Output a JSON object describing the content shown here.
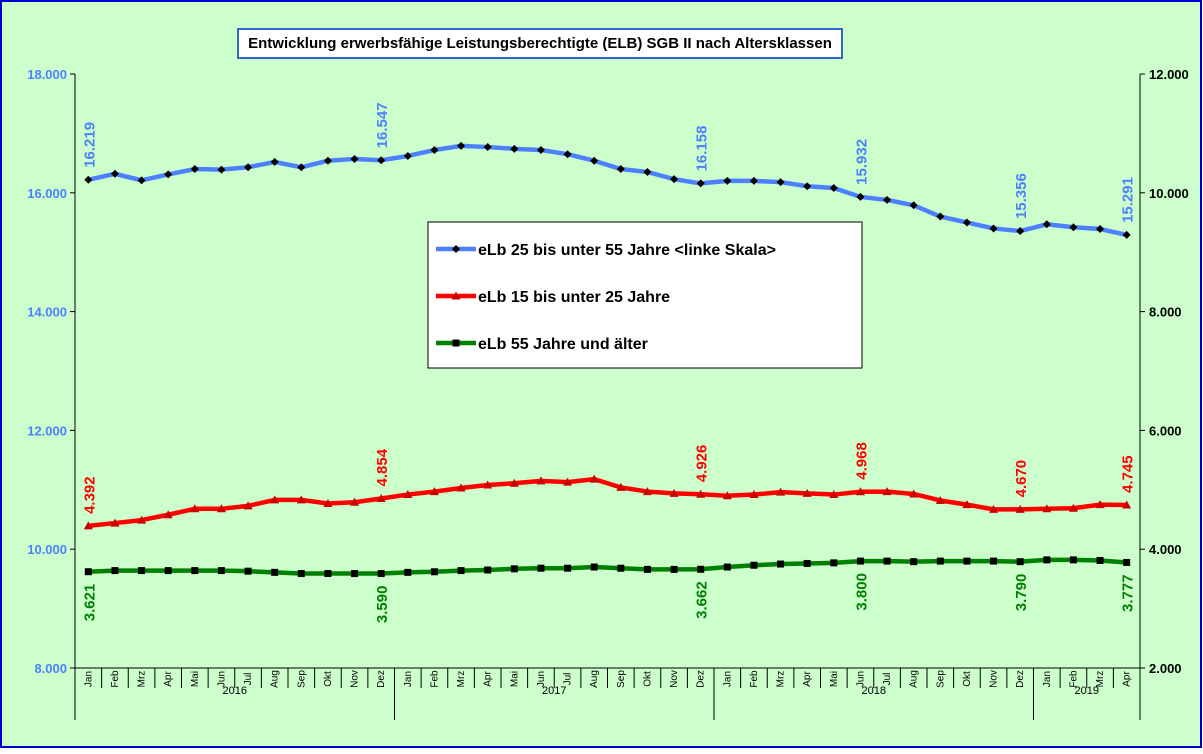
{
  "chart_data": {
    "type": "line",
    "title": "Entwicklung erwerbsfähige Leistungsberechtigte (ELB) SGB II nach Altersklassen",
    "categories": [
      "Jan",
      "Feb",
      "Mrz",
      "Apr",
      "Mai",
      "Jun",
      "Jul",
      "Aug",
      "Sep",
      "Okt",
      "Nov",
      "Dez",
      "Jan",
      "Feb",
      "Mrz",
      "Apr",
      "Mai",
      "Jun",
      "Jul",
      "Aug",
      "Sep",
      "Okt",
      "Nov",
      "Dez",
      "Jan",
      "Feb",
      "Mrz",
      "Apr",
      "Mai",
      "Jun",
      "Jul",
      "Aug",
      "Sep",
      "Okt",
      "Nov",
      "Dez",
      "Jan",
      "Feb",
      "Mrz",
      "Apr"
    ],
    "groups": [
      "2016",
      "2017",
      "2018",
      "2019"
    ],
    "ylim": [
      8000,
      18000
    ],
    "yticks": [
      {
        "value": 8000,
        "label": "8.000"
      },
      {
        "value": 10000,
        "label": "10.000"
      },
      {
        "value": 12000,
        "label": "12.000"
      },
      {
        "value": 14000,
        "label": "14.000"
      },
      {
        "value": 16000,
        "label": "16.000"
      },
      {
        "value": 18000,
        "label": "18.000"
      }
    ],
    "y2lim": [
      2000,
      12000
    ],
    "y2ticks": [
      {
        "value": 2000,
        "label": "2.000"
      },
      {
        "value": 4000,
        "label": "4.000"
      },
      {
        "value": 6000,
        "label": "6.000"
      },
      {
        "value": 8000,
        "label": "8.000"
      },
      {
        "value": 10000,
        "label": "10.000"
      },
      {
        "value": 12000,
        "label": "12.000"
      }
    ],
    "legend": "center",
    "series": [
      {
        "name": "eLb 25 bis unter 55 Jahre <linke Skala>",
        "color": "#4d80ff",
        "marker": "diamond",
        "marker_color": "#000000",
        "label_position": "above",
        "values": [
          16219,
          16320,
          16210,
          16310,
          16400,
          16390,
          16430,
          16520,
          16430,
          16540,
          16570,
          16547,
          16620,
          16720,
          16790,
          16770,
          16740,
          16720,
          16650,
          16540,
          16400,
          16350,
          16230,
          16158,
          16200,
          16200,
          16180,
          16110,
          16080,
          15932,
          15880,
          15790,
          15600,
          15500,
          15400,
          15356,
          15470,
          15420,
          15390,
          15291
        ],
        "value_labels": [
          "16.219",
          null,
          null,
          null,
          null,
          null,
          null,
          null,
          null,
          null,
          null,
          "16.547",
          null,
          null,
          null,
          null,
          null,
          null,
          null,
          null,
          null,
          null,
          null,
          "16.158",
          null,
          null,
          null,
          null,
          null,
          "15.932",
          null,
          null,
          null,
          null,
          null,
          "15.356",
          null,
          null,
          null,
          "15.291"
        ]
      },
      {
        "name": "eLb 15 bis unter 25 Jahre",
        "color": "#ff0000",
        "marker": "triangle",
        "marker_color": "#cc0000",
        "axis": "y2",
        "label_position": "above",
        "values": [
          4392,
          4440,
          4490,
          4580,
          4680,
          4680,
          4730,
          4830,
          4830,
          4770,
          4790,
          4854,
          4920,
          4970,
          5030,
          5080,
          5110,
          5150,
          5130,
          5180,
          5040,
          4970,
          4940,
          4926,
          4900,
          4920,
          4960,
          4940,
          4920,
          4968,
          4970,
          4930,
          4820,
          4750,
          4670,
          4670,
          4680,
          4690,
          4750,
          4745
        ],
        "value_labels": [
          "4.392",
          null,
          null,
          null,
          null,
          null,
          null,
          null,
          null,
          null,
          null,
          "4.854",
          null,
          null,
          null,
          null,
          null,
          null,
          null,
          null,
          null,
          null,
          null,
          "4.926",
          null,
          null,
          null,
          null,
          null,
          "4.968",
          null,
          null,
          null,
          null,
          null,
          "4.670",
          null,
          null,
          null,
          "4.745"
        ]
      },
      {
        "name": "eLb 55 Jahre und älter",
        "color": "#008000",
        "marker": "square",
        "marker_color": "#000000",
        "axis": "y2",
        "label_position": "below",
        "values": [
          3621,
          3640,
          3640,
          3640,
          3640,
          3640,
          3630,
          3610,
          3590,
          3590,
          3590,
          3590,
          3610,
          3620,
          3640,
          3650,
          3670,
          3680,
          3680,
          3700,
          3680,
          3660,
          3660,
          3662,
          3700,
          3730,
          3750,
          3760,
          3770,
          3800,
          3800,
          3790,
          3800,
          3800,
          3800,
          3790,
          3820,
          3820,
          3810,
          3777
        ],
        "value_labels": [
          "3.621",
          null,
          null,
          null,
          null,
          null,
          null,
          null,
          null,
          null,
          null,
          "3.590",
          null,
          null,
          null,
          null,
          null,
          null,
          null,
          null,
          null,
          null,
          null,
          "3.662",
          null,
          null,
          null,
          null,
          null,
          "3.800",
          null,
          null,
          null,
          null,
          null,
          "3.790",
          null,
          null,
          null,
          "3.777"
        ]
      }
    ]
  }
}
